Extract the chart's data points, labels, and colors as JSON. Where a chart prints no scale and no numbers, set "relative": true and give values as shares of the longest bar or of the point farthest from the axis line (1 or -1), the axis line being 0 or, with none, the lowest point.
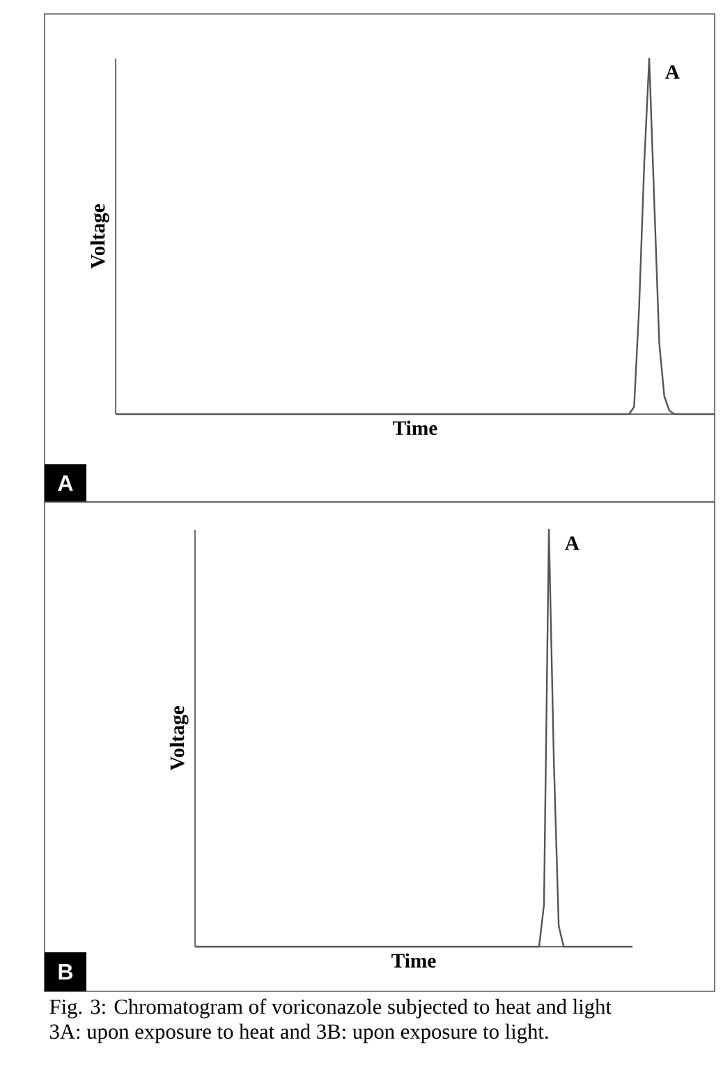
{
  "chart_data": [
    {
      "type": "line",
      "relative": true,
      "color": "#555555",
      "xlabel": "Time",
      "ylabel": "Voltage",
      "annotations": [
        "A",
        "A"
      ],
      "categories": [
        null,
        null,
        null,
        null,
        null,
        null,
        null,
        null,
        null,
        null,
        null,
        null,
        null,
        null,
        null,
        null,
        null,
        null,
        null,
        null,
        null,
        null,
        null,
        null,
        null,
        null,
        null,
        null,
        null,
        null,
        null,
        null,
        null,
        null,
        null,
        null,
        null,
        null,
        null,
        null,
        null,
        null,
        null,
        null,
        null,
        null,
        null,
        null,
        null,
        null,
        null,
        null,
        null,
        null,
        null,
        null,
        null,
        null,
        null,
        null,
        null,
        null,
        null,
        null,
        null,
        null,
        null,
        null,
        null,
        null,
        null,
        null,
        null,
        null,
        null,
        null,
        null,
        null,
        null,
        null,
        null,
        null,
        null,
        null,
        null,
        null,
        null,
        null,
        null,
        null,
        null,
        null,
        null,
        null,
        null,
        null,
        null,
        null,
        null,
        null,
        null,
        null,
        null,
        null,
        null,
        null,
        null,
        null,
        null,
        null,
        null,
        null,
        null,
        null,
        null,
        null,
        null,
        null,
        null,
        null
      ],
      "values": [
        0,
        0,
        0,
        0,
        0,
        0,
        0,
        0,
        0,
        0,
        0,
        0,
        0,
        0,
        0,
        0,
        0,
        0,
        0,
        0,
        0,
        0,
        0,
        0,
        0,
        0,
        0,
        0,
        0,
        0,
        0,
        0,
        0,
        0,
        0,
        0,
        0,
        0,
        0,
        0,
        0,
        0,
        0,
        0,
        0,
        0,
        0,
        0,
        0,
        0,
        0,
        0,
        0,
        0,
        0,
        0,
        0,
        0,
        0,
        0,
        0,
        0,
        0,
        0,
        0,
        0,
        0,
        0,
        0,
        0,
        0,
        0,
        0,
        0,
        0,
        0,
        0,
        0,
        0,
        0,
        0,
        0,
        0,
        0,
        0,
        0,
        0,
        0,
        0,
        0,
        0,
        0,
        0,
        0,
        0,
        0,
        0,
        0,
        0,
        0,
        0,
        0,
        0,
        0.02,
        0.3,
        0.7,
        1,
        0.6,
        0.2,
        0.05,
        0.01,
        0,
        0,
        0,
        0,
        0,
        0,
        0,
        0,
        0
      ]
    },
    {
      "type": "line",
      "relative": true,
      "color": "#555555",
      "xlabel": "Time",
      "ylabel": "Voltage",
      "annotations": [
        "A",
        "B",
        "Fig. 3: Chromatogram of voriconazole subjected to heat and light",
        "3A: upon exposure to heat and 3B: upon exposure to light."
      ],
      "categories": [
        null,
        null,
        null,
        null,
        null,
        null,
        null,
        null,
        null,
        null,
        null,
        null,
        null,
        null,
        null,
        null,
        null,
        null,
        null,
        null,
        null,
        null,
        null,
        null,
        null,
        null,
        null,
        null,
        null,
        null,
        null,
        null,
        null,
        null,
        null,
        null,
        null,
        null,
        null,
        null,
        null,
        null,
        null,
        null,
        null,
        null,
        null,
        null,
        null,
        null,
        null,
        null,
        null,
        null,
        null,
        null,
        null,
        null,
        null,
        null,
        null,
        null,
        null,
        null,
        null,
        null,
        null,
        null,
        null,
        null,
        null,
        null,
        null,
        null,
        null,
        null,
        null,
        null,
        null,
        null,
        null,
        null,
        null,
        null,
        null,
        null,
        null,
        null,
        null,
        null
      ],
      "values": [
        0,
        0,
        0,
        0,
        0,
        0,
        0,
        0,
        0,
        0,
        0,
        0,
        0,
        0,
        0,
        0,
        0,
        0,
        0,
        0,
        0,
        0,
        0,
        0,
        0,
        0,
        0,
        0,
        0,
        0,
        0,
        0,
        0,
        0,
        0,
        0,
        0,
        0,
        0,
        0,
        0,
        0,
        0,
        0,
        0,
        0,
        0,
        0,
        0,
        0,
        0,
        0,
        0,
        0,
        0,
        0,
        0,
        0,
        0,
        0,
        0,
        0,
        0,
        0,
        0,
        0,
        0,
        0,
        0,
        0,
        0,
        0.1,
        1,
        0.45,
        0.05,
        0,
        0,
        0,
        0,
        0,
        0,
        0,
        0,
        0,
        0,
        0,
        0,
        0,
        0,
        0
      ]
    }
  ]
}
